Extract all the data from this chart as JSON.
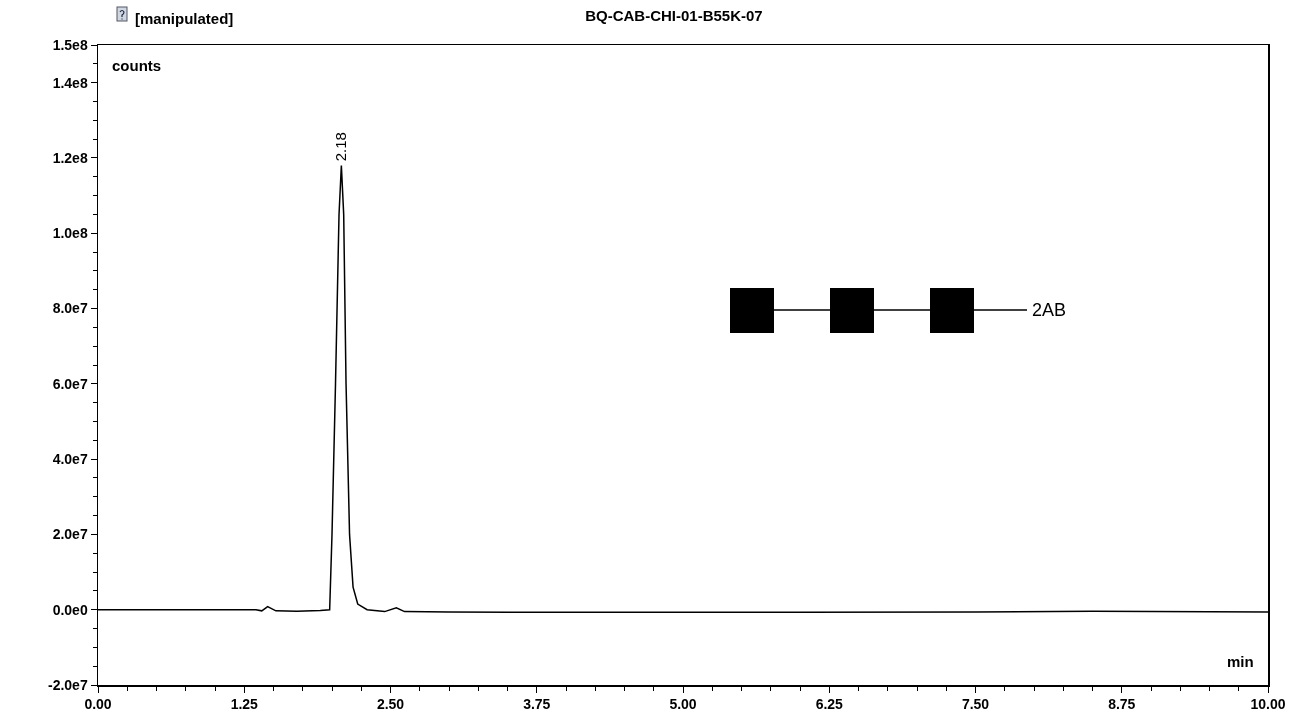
{
  "chart_data": {
    "type": "line",
    "title": "BQ-CAB-CHI-01-B55K-07",
    "xlabel": "min",
    "ylabel": "counts",
    "annotations": [
      "[manipulated]",
      {
        "text": "2.18",
        "x": 2.08,
        "y": 118000000
      },
      "2AB"
    ],
    "x": [
      0,
      0.5,
      1.0,
      1.35,
      1.4,
      1.45,
      1.52,
      1.7,
      1.9,
      1.98,
      2.0,
      2.03,
      2.06,
      2.08,
      2.1,
      2.12,
      2.15,
      2.18,
      2.22,
      2.3,
      2.45,
      2.55,
      2.62,
      3.0,
      4.0,
      5.0,
      6.0,
      7.5,
      8.5,
      9.0,
      10.0
    ],
    "series": [
      {
        "color": "#000000",
        "values": [
          0,
          0,
          0,
          0,
          -300000,
          800000,
          -300000,
          -400000,
          -200000,
          0,
          20000000,
          60000000,
          105000000,
          118000000,
          105000000,
          60000000,
          20000000,
          6000000,
          1500000,
          0,
          -500000,
          500000,
          -500000,
          -600000,
          -700000,
          -700000,
          -700000,
          -600000,
          -400000,
          -500000,
          -600000
        ]
      }
    ],
    "xlim": [
      0,
      10
    ],
    "xticks": [
      {
        "value": 0,
        "label": "0.00"
      },
      {
        "value": 1.25,
        "label": "1.25"
      },
      {
        "value": 2.5,
        "label": "2.50"
      },
      {
        "value": 3.75,
        "label": "3.75"
      },
      {
        "value": 5,
        "label": "5.00"
      },
      {
        "value": 6.25,
        "label": "6.25"
      },
      {
        "value": 7.5,
        "label": "7.50"
      },
      {
        "value": 8.75,
        "label": "8.75"
      },
      {
        "value": 10,
        "label": "10.00"
      }
    ],
    "ylim": [
      -20000000,
      150000000
    ],
    "yticks": [
      {
        "value": -20000000,
        "label": "-2.0e7"
      },
      {
        "value": 0,
        "label": "0.0e0"
      },
      {
        "value": 20000000,
        "label": "2.0e7"
      },
      {
        "value": 40000000,
        "label": "4.0e7"
      },
      {
        "value": 60000000,
        "label": "6.0e7"
      },
      {
        "value": 80000000,
        "label": "8.0e7"
      },
      {
        "value": 100000000,
        "label": "1.0e8"
      },
      {
        "value": 120000000,
        "label": "1.2e8"
      },
      {
        "value": 140000000,
        "label": "1.4e8"
      },
      {
        "value": 150000000,
        "label": "1.5e8"
      }
    ],
    "grid": false,
    "marker": "none",
    "line_style": "solid"
  }
}
